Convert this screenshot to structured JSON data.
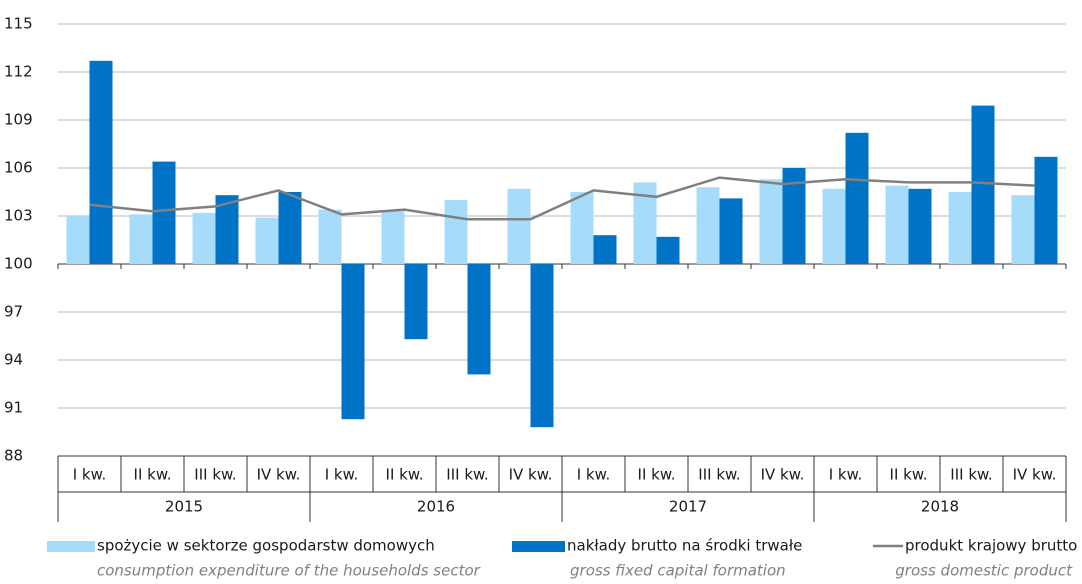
{
  "chart_data": {
    "type": "bar",
    "categories": [
      "I kw.",
      "II kw.",
      "III kw.",
      "IV kw.",
      "I kw.",
      "II kw.",
      "III kw.",
      "IV kw.",
      "I kw.",
      "II kw.",
      "III kw.",
      "IV kw.",
      "I kw.",
      "II kw.",
      "III kw.",
      "IV kw."
    ],
    "groups": [
      "2015",
      "2016",
      "2017",
      "2018"
    ],
    "series": [
      {
        "name": "spożycie w sektorze gospodarstw domowych",
        "name_en": "consumption expenditure of the households sector",
        "color": "#a6dcfa",
        "kind": "bar",
        "values": [
          103.0,
          103.1,
          103.2,
          102.9,
          103.4,
          103.3,
          104.0,
          104.7,
          104.5,
          105.1,
          104.8,
          105.3,
          104.7,
          104.9,
          104.5,
          104.3
        ]
      },
      {
        "name": "nakłady brutto na środki trwałe",
        "name_en": "gross fixed capital formation",
        "color": "#0073c6",
        "kind": "bar",
        "values": [
          112.7,
          106.4,
          104.3,
          104.5,
          90.3,
          95.3,
          93.1,
          89.8,
          101.8,
          101.7,
          104.1,
          106.0,
          108.2,
          104.7,
          109.9,
          106.7
        ]
      },
      {
        "name": "produkt krajowy brutto",
        "name_en": "gross domestic product",
        "color": "#808080",
        "kind": "line",
        "values": [
          103.7,
          103.3,
          103.6,
          104.6,
          103.1,
          103.4,
          102.8,
          102.8,
          104.6,
          104.2,
          105.4,
          105.0,
          105.3,
          105.1,
          105.1,
          104.9
        ]
      }
    ],
    "ylim": [
      88,
      115
    ],
    "yticks": [
      88,
      91,
      94,
      97,
      100,
      103,
      106,
      109,
      112,
      115
    ],
    "baseline": 100,
    "grid": true
  }
}
